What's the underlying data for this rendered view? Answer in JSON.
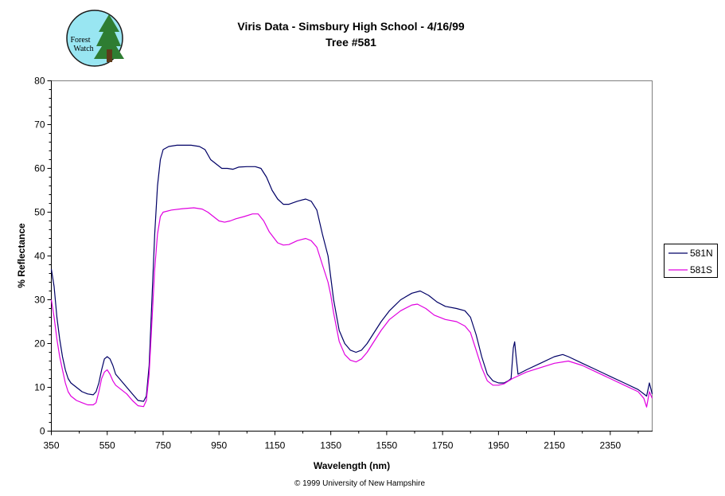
{
  "logo": {
    "line1": "Forest",
    "line2": "Watch"
  },
  "footer": "© 1999 University of New Hampshire",
  "colors": {
    "n": "#000066",
    "s": "#e000e0",
    "logo_bg": "#99e6f2",
    "tree": "#2e7d32"
  },
  "chart_data": {
    "type": "line",
    "title": "Viris Data - Simsbury High School - 4/16/99",
    "subtitle": "Tree #581",
    "xlabel": "Wavelength (nm)",
    "ylabel": "% Reflectance",
    "xlim": [
      350,
      2500
    ],
    "ylim": [
      0,
      80
    ],
    "xticks": [
      350,
      550,
      750,
      950,
      1150,
      1350,
      1550,
      1750,
      1950,
      2150,
      2350
    ],
    "yticks": [
      0,
      10,
      20,
      30,
      40,
      50,
      60,
      70,
      80
    ],
    "grid": false,
    "legend_position": "right",
    "series": [
      {
        "name": "581N",
        "color": "#000066",
        "points": [
          [
            350,
            37
          ],
          [
            360,
            33
          ],
          [
            370,
            26
          ],
          [
            380,
            21
          ],
          [
            390,
            17
          ],
          [
            400,
            14
          ],
          [
            410,
            12
          ],
          [
            420,
            11
          ],
          [
            440,
            10
          ],
          [
            460,
            9
          ],
          [
            480,
            8.5
          ],
          [
            500,
            8.3
          ],
          [
            510,
            9
          ],
          [
            520,
            11
          ],
          [
            530,
            14
          ],
          [
            540,
            16.5
          ],
          [
            550,
            17
          ],
          [
            560,
            16.5
          ],
          [
            570,
            15
          ],
          [
            580,
            13
          ],
          [
            600,
            11.5
          ],
          [
            620,
            10
          ],
          [
            640,
            8.5
          ],
          [
            660,
            7
          ],
          [
            680,
            6.8
          ],
          [
            690,
            8
          ],
          [
            700,
            15
          ],
          [
            710,
            30
          ],
          [
            720,
            45
          ],
          [
            730,
            56
          ],
          [
            740,
            62
          ],
          [
            750,
            64.3
          ],
          [
            770,
            65
          ],
          [
            800,
            65.3
          ],
          [
            850,
            65.3
          ],
          [
            880,
            65
          ],
          [
            900,
            64.3
          ],
          [
            920,
            62
          ],
          [
            940,
            61
          ],
          [
            960,
            60
          ],
          [
            980,
            60
          ],
          [
            1000,
            59.8
          ],
          [
            1020,
            60.3
          ],
          [
            1050,
            60.4
          ],
          [
            1080,
            60.4
          ],
          [
            1100,
            60
          ],
          [
            1120,
            58
          ],
          [
            1140,
            55
          ],
          [
            1160,
            53
          ],
          [
            1180,
            51.8
          ],
          [
            1200,
            51.8
          ],
          [
            1230,
            52.5
          ],
          [
            1260,
            53
          ],
          [
            1280,
            52.5
          ],
          [
            1300,
            50.5
          ],
          [
            1320,
            45
          ],
          [
            1340,
            40
          ],
          [
            1350,
            35
          ],
          [
            1360,
            30
          ],
          [
            1380,
            23
          ],
          [
            1400,
            20
          ],
          [
            1420,
            18.5
          ],
          [
            1440,
            18
          ],
          [
            1460,
            18.5
          ],
          [
            1480,
            20
          ],
          [
            1500,
            22
          ],
          [
            1530,
            25
          ],
          [
            1560,
            27.5
          ],
          [
            1600,
            30
          ],
          [
            1640,
            31.5
          ],
          [
            1670,
            32
          ],
          [
            1700,
            31
          ],
          [
            1730,
            29.5
          ],
          [
            1760,
            28.5
          ],
          [
            1800,
            28
          ],
          [
            1830,
            27.5
          ],
          [
            1850,
            26
          ],
          [
            1870,
            22
          ],
          [
            1890,
            17
          ],
          [
            1910,
            13
          ],
          [
            1930,
            11.5
          ],
          [
            1950,
            11
          ],
          [
            1970,
            11
          ],
          [
            1985,
            11.5
          ],
          [
            1995,
            12
          ],
          [
            2003,
            19
          ],
          [
            2008,
            20.4
          ],
          [
            2013,
            17
          ],
          [
            2020,
            13
          ],
          [
            2050,
            14
          ],
          [
            2100,
            15.5
          ],
          [
            2150,
            17
          ],
          [
            2180,
            17.5
          ],
          [
            2200,
            17
          ],
          [
            2250,
            15.5
          ],
          [
            2300,
            14
          ],
          [
            2350,
            12.5
          ],
          [
            2400,
            11
          ],
          [
            2450,
            9.5
          ],
          [
            2480,
            8
          ],
          [
            2490,
            11
          ],
          [
            2500,
            8.5
          ]
        ]
      },
      {
        "name": "581S",
        "color": "#e000e0",
        "points": [
          [
            350,
            30
          ],
          [
            360,
            26
          ],
          [
            370,
            21
          ],
          [
            380,
            17
          ],
          [
            390,
            14
          ],
          [
            400,
            11
          ],
          [
            410,
            9
          ],
          [
            420,
            8
          ],
          [
            440,
            7
          ],
          [
            460,
            6.5
          ],
          [
            480,
            6
          ],
          [
            500,
            6
          ],
          [
            510,
            6.5
          ],
          [
            520,
            9
          ],
          [
            530,
            12
          ],
          [
            540,
            13.5
          ],
          [
            550,
            14
          ],
          [
            560,
            13
          ],
          [
            570,
            11.5
          ],
          [
            580,
            10.5
          ],
          [
            600,
            9.5
          ],
          [
            620,
            8.5
          ],
          [
            640,
            7
          ],
          [
            660,
            5.8
          ],
          [
            680,
            5.6
          ],
          [
            690,
            7
          ],
          [
            700,
            13
          ],
          [
            710,
            25
          ],
          [
            720,
            37
          ],
          [
            730,
            45
          ],
          [
            740,
            49
          ],
          [
            750,
            50
          ],
          [
            780,
            50.5
          ],
          [
            820,
            50.8
          ],
          [
            860,
            51
          ],
          [
            890,
            50.7
          ],
          [
            910,
            50
          ],
          [
            930,
            49
          ],
          [
            950,
            48
          ],
          [
            970,
            47.7
          ],
          [
            990,
            48
          ],
          [
            1010,
            48.5
          ],
          [
            1040,
            49
          ],
          [
            1070,
            49.6
          ],
          [
            1090,
            49.6
          ],
          [
            1110,
            48
          ],
          [
            1130,
            45.5
          ],
          [
            1160,
            43
          ],
          [
            1180,
            42.5
          ],
          [
            1200,
            42.6
          ],
          [
            1230,
            43.5
          ],
          [
            1260,
            44
          ],
          [
            1280,
            43.5
          ],
          [
            1300,
            42
          ],
          [
            1320,
            38
          ],
          [
            1340,
            34
          ],
          [
            1350,
            31
          ],
          [
            1360,
            27
          ],
          [
            1380,
            20.5
          ],
          [
            1400,
            17.5
          ],
          [
            1420,
            16.2
          ],
          [
            1440,
            15.8
          ],
          [
            1460,
            16.5
          ],
          [
            1480,
            18
          ],
          [
            1500,
            20
          ],
          [
            1530,
            23
          ],
          [
            1560,
            25.5
          ],
          [
            1600,
            27.5
          ],
          [
            1640,
            28.8
          ],
          [
            1660,
            29
          ],
          [
            1690,
            28
          ],
          [
            1720,
            26.5
          ],
          [
            1760,
            25.5
          ],
          [
            1800,
            25
          ],
          [
            1830,
            24
          ],
          [
            1850,
            22.5
          ],
          [
            1870,
            18.5
          ],
          [
            1890,
            14.5
          ],
          [
            1910,
            11.5
          ],
          [
            1930,
            10.5
          ],
          [
            1950,
            10.5
          ],
          [
            1970,
            10.8
          ],
          [
            2000,
            12
          ],
          [
            2050,
            13.5
          ],
          [
            2100,
            14.5
          ],
          [
            2150,
            15.5
          ],
          [
            2200,
            16
          ],
          [
            2250,
            15
          ],
          [
            2300,
            13.5
          ],
          [
            2350,
            12
          ],
          [
            2400,
            10.5
          ],
          [
            2450,
            9
          ],
          [
            2470,
            7.5
          ],
          [
            2480,
            5.5
          ],
          [
            2490,
            9
          ],
          [
            2500,
            7.5
          ]
        ]
      }
    ]
  }
}
